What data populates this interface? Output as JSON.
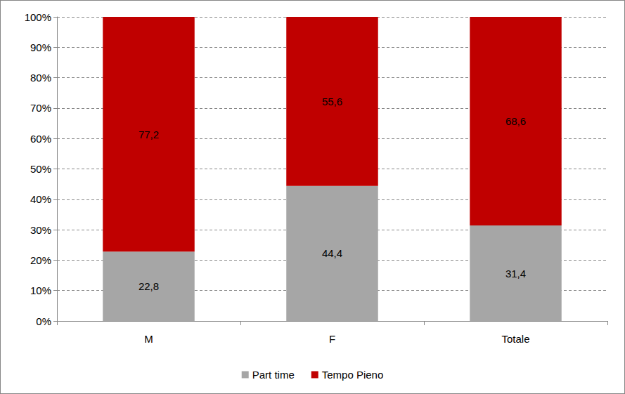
{
  "chart_data": {
    "type": "bar",
    "categories": [
      "M",
      "F",
      "Totale"
    ],
    "series": [
      {
        "name": "Part time",
        "color": "#a6a6a6",
        "values": [
          22.8,
          44.4,
          31.4
        ],
        "value_labels": [
          "22,8",
          "44,4",
          "31,4"
        ]
      },
      {
        "name": "Tempo Pieno",
        "color": "#c00000",
        "values": [
          77.2,
          55.6,
          68.6
        ],
        "value_labels": [
          "77,2",
          "55,6",
          "68,6"
        ]
      }
    ],
    "stacked": true,
    "data_labels": true,
    "ylim": [
      0,
      100
    ],
    "yticks": [
      {
        "value": 0,
        "label": "0%"
      },
      {
        "value": 10,
        "label": "10%"
      },
      {
        "value": 20,
        "label": "20%"
      },
      {
        "value": 30,
        "label": "30%"
      },
      {
        "value": 40,
        "label": "40%"
      },
      {
        "value": 50,
        "label": "50%"
      },
      {
        "value": 60,
        "label": "60%"
      },
      {
        "value": 70,
        "label": "70%"
      },
      {
        "value": 80,
        "label": "80%"
      },
      {
        "value": 90,
        "label": "90%"
      },
      {
        "value": 100,
        "label": "100%"
      }
    ],
    "grid": true,
    "legend": "bottom"
  }
}
